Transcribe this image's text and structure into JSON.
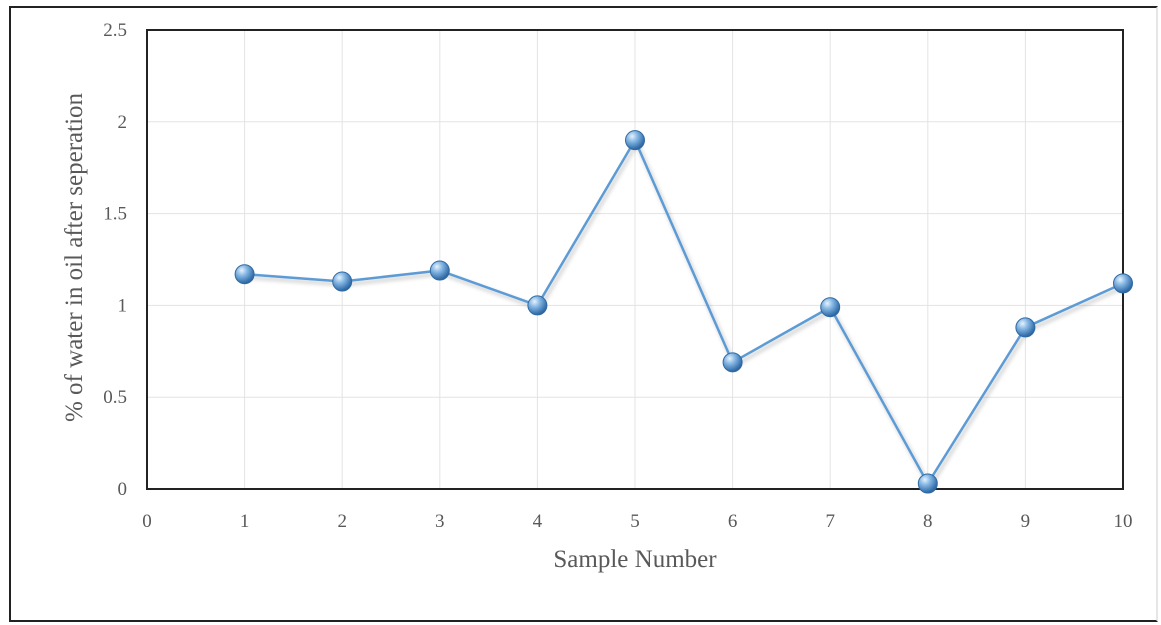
{
  "chart_data": {
    "type": "line",
    "title": "",
    "xlabel": "Sample Number",
    "ylabel": "% of water in oil after seperation",
    "xlim": [
      0,
      10
    ],
    "ylim": [
      0,
      2.5
    ],
    "x_ticks": [
      "0",
      "1",
      "2",
      "3",
      "4",
      "5",
      "6",
      "7",
      "8",
      "9",
      "10"
    ],
    "y_ticks": [
      "0",
      "0.5",
      "1",
      "1.5",
      "2",
      "2.5"
    ],
    "grid": true,
    "legend": "none",
    "series": [
      {
        "x": [
          1,
          2,
          3,
          4,
          5,
          6,
          7,
          8,
          9,
          10
        ],
        "values": [
          1.17,
          1.13,
          1.19,
          1.0,
          1.9,
          0.69,
          0.99,
          0.03,
          0.88,
          1.12
        ],
        "color": "#5b9bd5"
      }
    ]
  }
}
